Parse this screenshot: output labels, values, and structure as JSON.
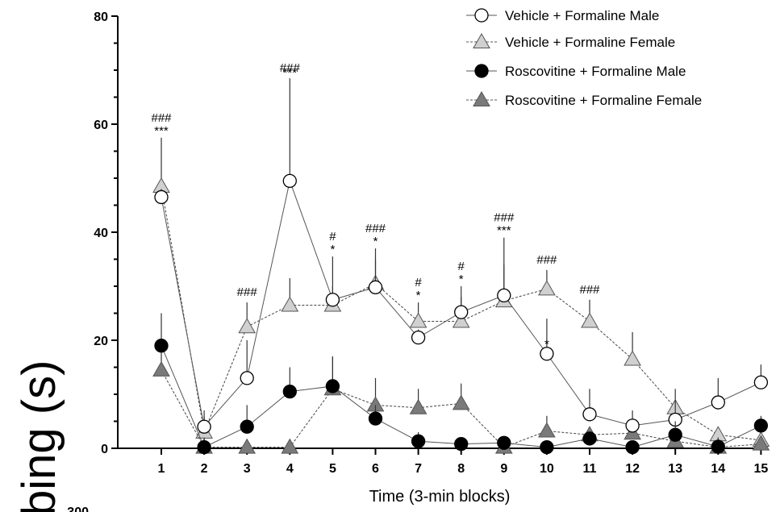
{
  "chart_data": {
    "type": "line",
    "xlabel": "Time  (3-min blocks)",
    "ylabel_fragment": "bing (s)",
    "ylim": [
      0,
      80
    ],
    "yticks": [
      0,
      20,
      40,
      60,
      80
    ],
    "x": [
      1,
      2,
      3,
      4,
      5,
      6,
      7,
      8,
      9,
      10,
      11,
      12,
      13,
      14,
      15
    ],
    "legend_position": "top-right",
    "series": [
      {
        "name": "Vehicle + Formaline Male",
        "marker": "circle-open",
        "line": "solid",
        "fill": "#ffffff",
        "values": [
          46.5,
          4,
          13,
          49.5,
          27.5,
          29.8,
          20.5,
          25.2,
          28.3,
          17.5,
          6.3,
          4.2,
          5.3,
          8.5,
          12.2
        ],
        "upper": [
          48,
          7,
          20,
          68.5,
          35.5,
          35,
          22,
          30,
          39,
          24,
          11,
          7,
          9,
          13,
          15.5
        ]
      },
      {
        "name": "Vehicle + Formaline Female",
        "marker": "triangle-light",
        "line": "dashed",
        "fill": "#d0d0d0",
        "values": [
          48.5,
          3,
          22.5,
          26.5,
          26.5,
          30.5,
          23.5,
          23.5,
          27.3,
          29.5,
          23.5,
          16.5,
          7.5,
          2.5,
          1.5
        ],
        "upper": [
          57.5,
          6,
          27,
          31.5,
          30,
          37,
          27,
          28,
          34,
          33,
          27.5,
          21.5,
          11,
          4,
          3
        ]
      },
      {
        "name": "Roscovitine + Formaline Male",
        "marker": "circle-filled",
        "line": "solid",
        "fill": "#000000",
        "values": [
          19,
          0.2,
          4,
          10.5,
          11.5,
          5.5,
          1.3,
          0.8,
          1,
          0.2,
          1.8,
          0.2,
          2.5,
          0.3,
          4.2
        ],
        "upper": [
          25,
          2,
          8,
          15,
          17,
          8,
          3,
          2,
          2,
          1,
          3,
          1,
          5,
          2,
          6
        ]
      },
      {
        "name": "Roscovitine + Formaline Female",
        "marker": "triangle-dark",
        "line": "dashed",
        "fill": "#7a7a7a",
        "values": [
          14.5,
          0.2,
          0.2,
          0.2,
          11,
          8,
          7.5,
          8.3,
          0.2,
          3.2,
          2.5,
          2.8,
          1.3,
          0.2,
          0.8
        ],
        "upper": [
          20,
          1,
          1,
          1,
          17,
          13,
          11,
          12,
          1,
          6,
          4,
          5,
          3,
          1,
          2
        ]
      }
    ],
    "annotations": [
      {
        "x": 1,
        "hash": "###",
        "star": "***"
      },
      {
        "x": 3,
        "hash": "###",
        "star": ""
      },
      {
        "x": 4,
        "hash": "###",
        "star": ""
      },
      {
        "x": 4,
        "hash": "",
        "star": "***",
        "top": true
      },
      {
        "x": 5,
        "hash": "#",
        "star": "*"
      },
      {
        "x": 6,
        "hash": "###",
        "star": "*"
      },
      {
        "x": 7,
        "hash": "#",
        "star": "*"
      },
      {
        "x": 8,
        "hash": "#",
        "star": "*"
      },
      {
        "x": 9,
        "hash": "###",
        "star": "***"
      },
      {
        "x": 10,
        "hash": "###",
        "star": ""
      },
      {
        "x": 10,
        "hash": "",
        "star": "*",
        "low": true
      },
      {
        "x": 11,
        "hash": "###",
        "star": ""
      }
    ]
  },
  "partial_next_axis_label": "300"
}
